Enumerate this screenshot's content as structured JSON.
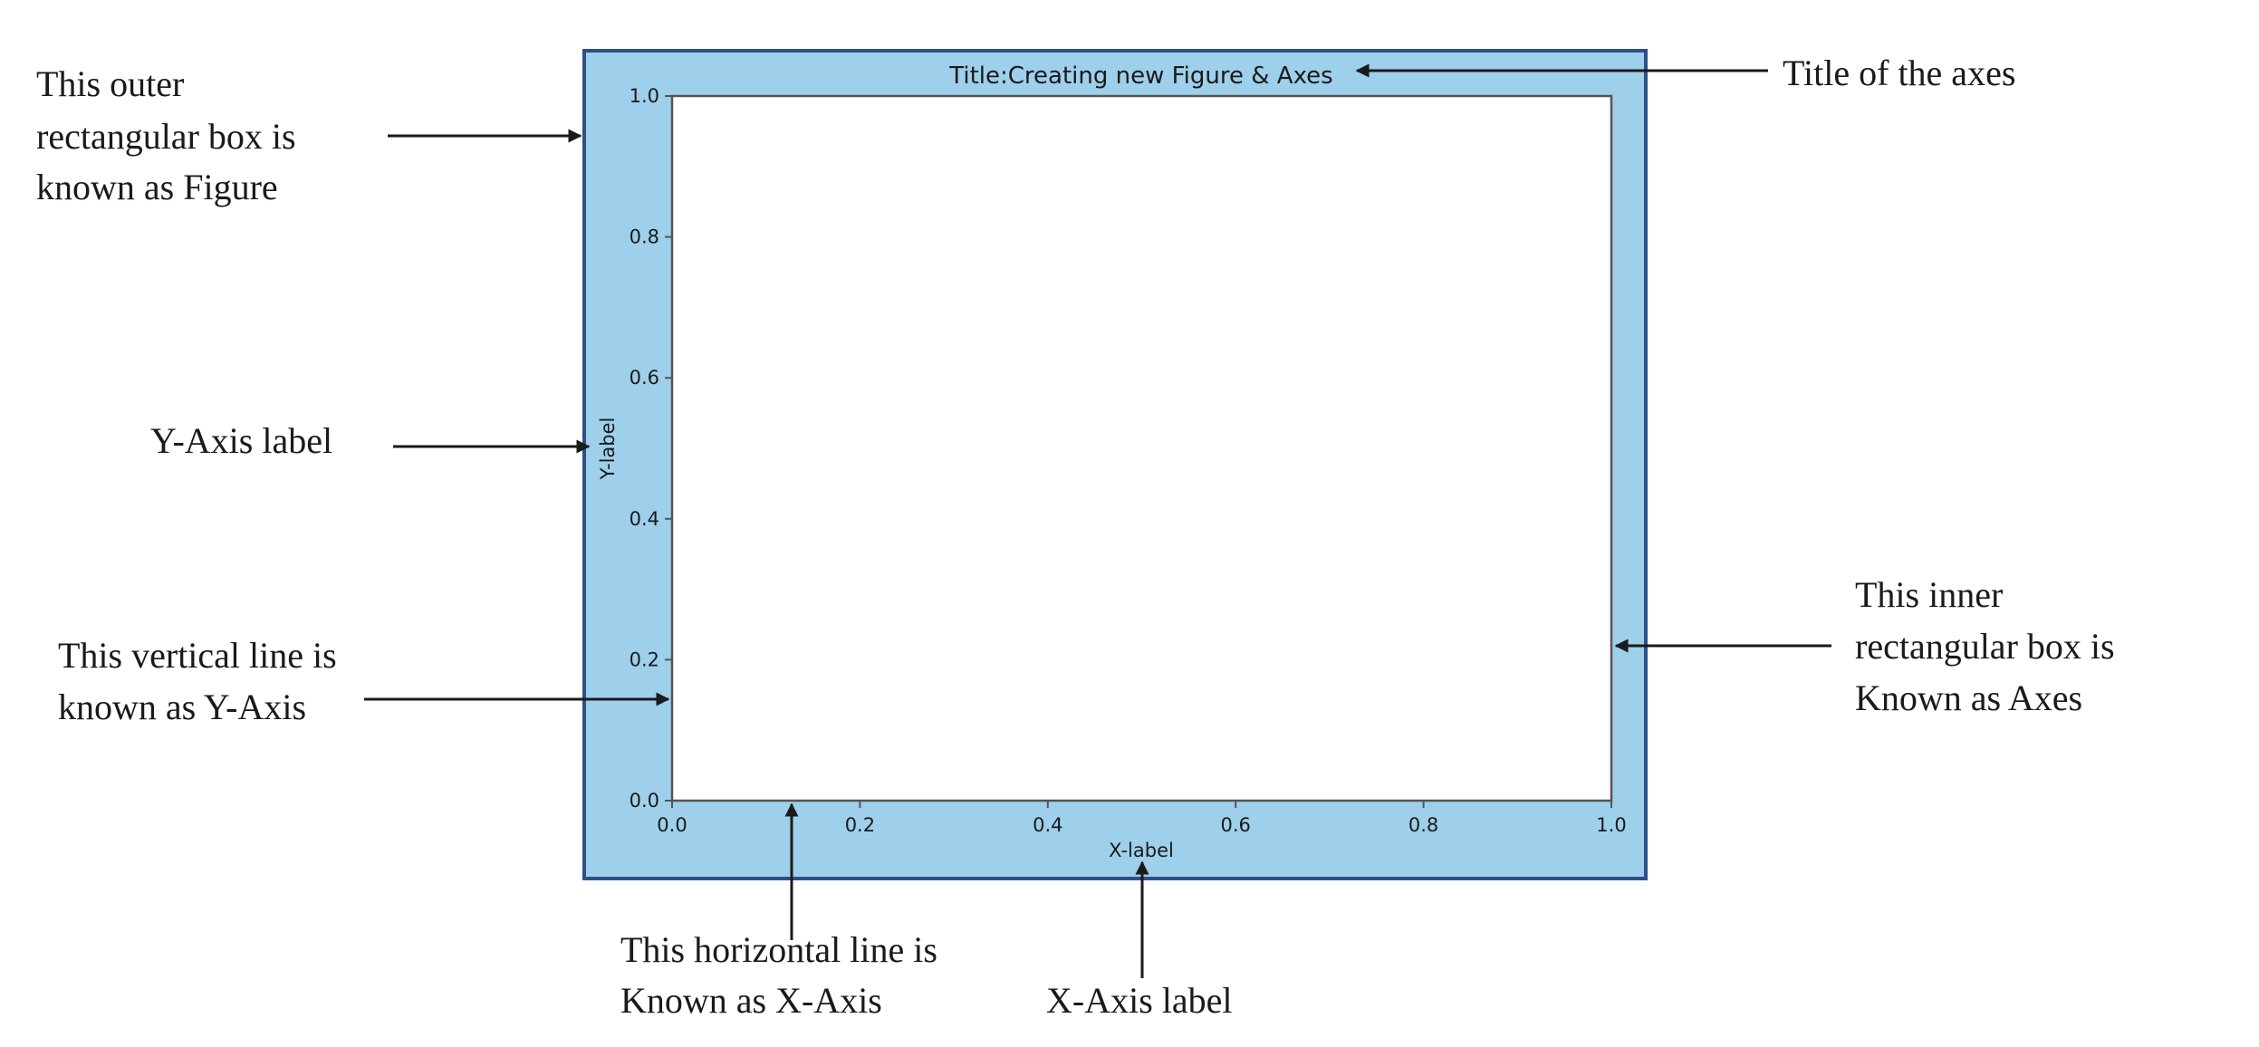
{
  "figure": {
    "title": "Title:Creating new Figure & Axes",
    "xlabel": "X-label",
    "ylabel": "Y-label",
    "colors": {
      "figure_face": "#9ecfeb",
      "figure_border": "#2f4f86",
      "axes_face": "#ffffff",
      "axes_spine": "#555555",
      "arrow": "#1a1a1a"
    }
  },
  "axes": {
    "x_ticks": [
      "0.0",
      "0.2",
      "0.4",
      "0.6",
      "0.8",
      "1.0"
    ],
    "y_ticks": [
      "0.0",
      "0.2",
      "0.4",
      "0.6",
      "0.8",
      "1.0"
    ],
    "xlim": [
      0,
      1
    ],
    "ylim": [
      0,
      1
    ]
  },
  "annotations": {
    "figure_box": [
      "This outer",
      "rectangular box is",
      "known as  Figure"
    ],
    "title_of_axes": [
      "Title of the axes"
    ],
    "y_axis_label": [
      "Y-Axis label"
    ],
    "y_axis_line": [
      "This vertical line is",
      "known as Y-Axis"
    ],
    "axes_box": [
      "This inner",
      "rectangular box is",
      "Known as Axes"
    ],
    "x_axis_line": [
      "This horizontal line is",
      "Known as X-Axis"
    ],
    "x_axis_label": [
      "X-Axis label"
    ]
  }
}
